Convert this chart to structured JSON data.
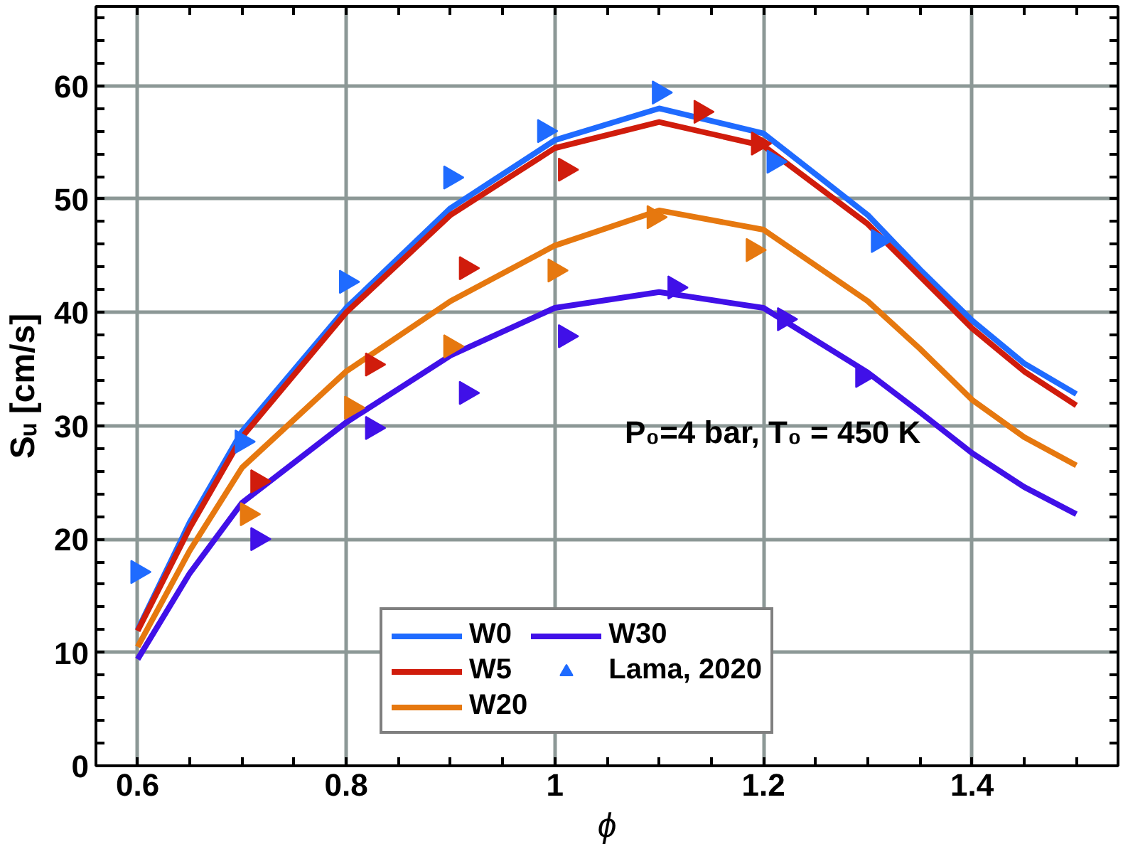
{
  "chart_data": {
    "type": "line",
    "xlabel": "ϕ",
    "ylabel": "Sᵤ [cm/s]",
    "annotations": [
      "P₀=4 bar, T₀ = 450 K"
    ],
    "xlim": [
      0.56,
      1.54
    ],
    "ylim": [
      0,
      67
    ],
    "xticks": [
      0.6,
      {
        "value": 0.65,
        "label": null
      },
      {
        "value": 0.7,
        "label": null
      },
      {
        "value": 0.75,
        "label": null
      },
      0.8,
      {
        "value": 0.85,
        "label": null
      },
      {
        "value": 0.9,
        "label": null
      },
      {
        "value": 0.95,
        "label": null
      },
      1,
      {
        "value": 1.05,
        "label": null
      },
      {
        "value": 1.1,
        "label": null
      },
      {
        "value": 1.15,
        "label": null
      },
      1.2,
      {
        "value": 1.25,
        "label": null
      },
      {
        "value": 1.3,
        "label": null
      },
      {
        "value": 1.35,
        "label": null
      },
      1.4,
      {
        "value": 1.45,
        "label": null
      },
      {
        "value": 1.5,
        "label": null
      }
    ],
    "yticks": [
      0,
      {
        "value": 2,
        "label": null
      },
      {
        "value": 4,
        "label": null
      },
      {
        "value": 6,
        "label": null
      },
      {
        "value": 8,
        "label": null
      },
      10,
      {
        "value": 12,
        "label": null
      },
      {
        "value": 14,
        "label": null
      },
      {
        "value": 16,
        "label": null
      },
      {
        "value": 18,
        "label": null
      },
      20,
      {
        "value": 22,
        "label": null
      },
      {
        "value": 24,
        "label": null
      },
      {
        "value": 26,
        "label": null
      },
      {
        "value": 28,
        "label": null
      },
      30,
      {
        "value": 32,
        "label": null
      },
      {
        "value": 34,
        "label": null
      },
      {
        "value": 36,
        "label": null
      },
      {
        "value": 38,
        "label": null
      },
      40,
      {
        "value": 42,
        "label": null
      },
      {
        "value": 44,
        "label": null
      },
      {
        "value": 46,
        "label": null
      },
      {
        "value": 48,
        "label": null
      },
      50,
      {
        "value": 52,
        "label": null
      },
      {
        "value": 54,
        "label": null
      },
      {
        "value": 56,
        "label": null
      },
      {
        "value": 58,
        "label": null
      },
      60,
      {
        "value": 62,
        "label": null
      },
      {
        "value": 64,
        "label": null
      },
      {
        "value": 66,
        "label": null
      }
    ],
    "grid": true,
    "legend": "bottom",
    "line_style": "solid",
    "marker": "none",
    "x": [
      0.6,
      0.65,
      0.7,
      0.8,
      0.9,
      1.0,
      1.1,
      1.2,
      1.3,
      1.35,
      1.4,
      1.45,
      1.5
    ],
    "series": [
      {
        "name": "W0",
        "color": "#1f6bff",
        "values": [
          12,
          21.5,
          29.5,
          40.4,
          49.2,
          55.2,
          58,
          55.8,
          48.6,
          43.8,
          39.3,
          35.5,
          32.8
        ]
      },
      {
        "name": "W5",
        "color": "#d01c0c",
        "values": [
          11.9,
          21,
          29,
          40,
          48.6,
          54.5,
          56.8,
          54.7,
          47.8,
          43.2,
          38.6,
          34.8,
          31.8
        ]
      },
      {
        "name": "W20",
        "color": "#e6780f",
        "values": [
          10.5,
          19,
          26.3,
          34.8,
          41,
          45.9,
          49,
          47.3,
          41,
          36.8,
          32.3,
          29,
          26.5
        ]
      },
      {
        "name": "W30",
        "color": "#4010e8",
        "values": [
          9.4,
          17,
          23.2,
          30.3,
          36.2,
          40.4,
          41.8,
          40.4,
          34.7,
          31.2,
          27.6,
          24.6,
          22.2
        ]
      },
      {
        "name": "Lama, 2020",
        "type": "scatter",
        "marker": "triangle",
        "x": [
          0.6,
          0.7,
          0.8,
          0.9,
          0.99,
          1.1,
          1.21,
          1.31,
          0.715,
          0.825,
          0.915,
          1.01,
          1.14,
          1.195,
          0.705,
          0.805,
          0.9,
          1.0,
          1.095,
          1.19,
          0.715,
          0.825,
          0.915,
          1.01,
          1.115,
          1.22,
          1.295
        ],
        "values": [
          17.1,
          28.6,
          42.7,
          51.9,
          56,
          59.4,
          53.3,
          46.3,
          25.1,
          35.4,
          43.9,
          52.6,
          57.7,
          54.9,
          22.2,
          31.6,
          37,
          43.7,
          48.4,
          45.5,
          20,
          29.8,
          32.9,
          37.9,
          42.2,
          39.4,
          34.4
        ],
        "colors": [
          "#1f6bff",
          "#1f6bff",
          "#1f6bff",
          "#1f6bff",
          "#1f6bff",
          "#1f6bff",
          "#1f6bff",
          "#1f6bff",
          "#d01c0c",
          "#d01c0c",
          "#d01c0c",
          "#d01c0c",
          "#d01c0c",
          "#d01c0c",
          "#e6780f",
          "#e6780f",
          "#e6780f",
          "#e6780f",
          "#e6780f",
          "#e6780f",
          "#4010e8",
          "#4010e8",
          "#4010e8",
          "#4010e8",
          "#4010e8",
          "#4010e8",
          "#4010e8"
        ]
      }
    ]
  }
}
